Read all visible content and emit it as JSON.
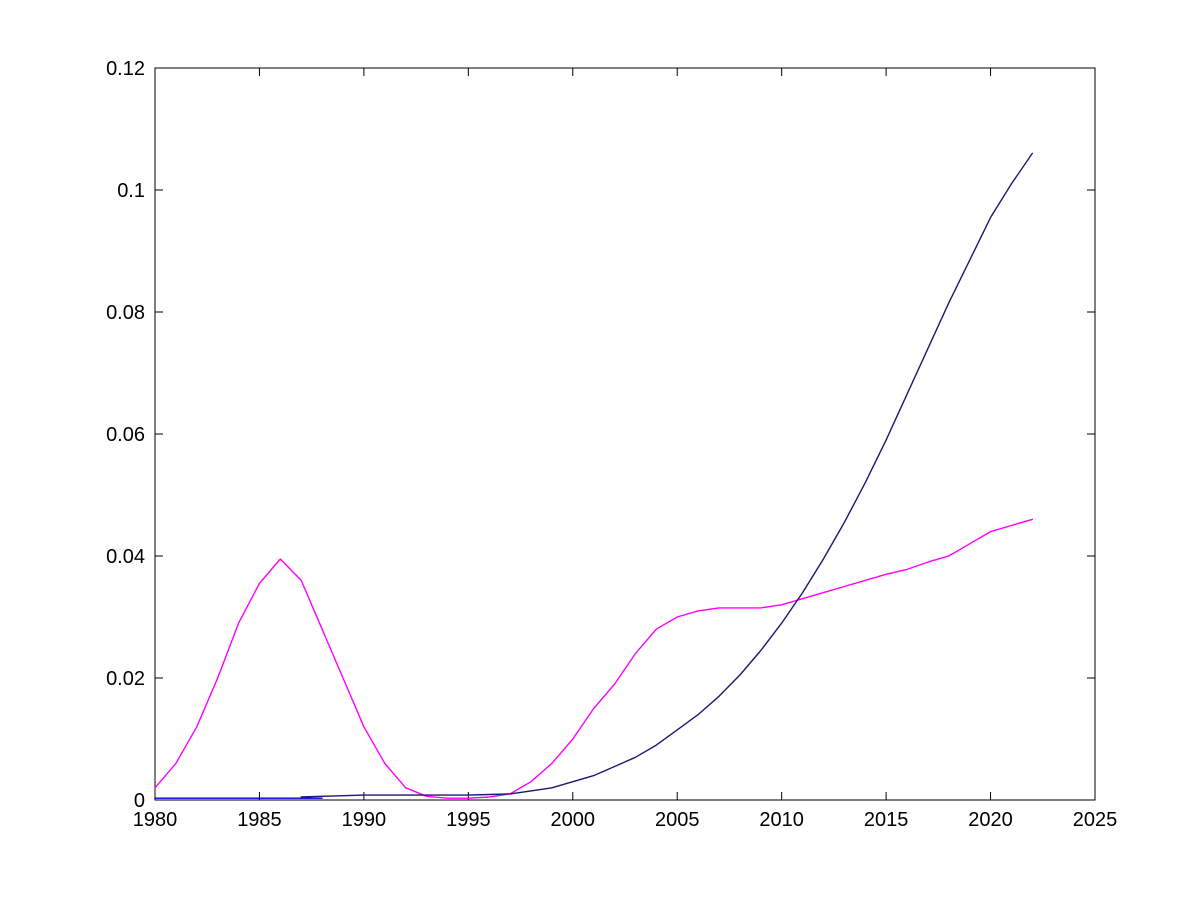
{
  "chart_data": {
    "type": "line",
    "title": "",
    "xlabel": "",
    "ylabel": "",
    "xlim": [
      1980,
      2025
    ],
    "ylim": [
      0,
      0.12
    ],
    "grid": false,
    "legend": "none",
    "xticks": [
      1980,
      1985,
      1990,
      1995,
      2000,
      2005,
      2010,
      2015,
      2020,
      2025
    ],
    "xtick_labels": [
      "1980",
      "1985",
      "1990",
      "1995",
      "2000",
      "2005",
      "2010",
      "2015",
      "2020",
      "2025"
    ],
    "yticks": [
      0,
      0.02,
      0.04,
      0.06,
      0.08,
      0.1,
      0.12
    ],
    "ytick_labels": [
      "0",
      "0.02",
      "0.04",
      "0.06",
      "0.08",
      "0.1",
      "0.12"
    ],
    "series": [
      {
        "name": "magenta-line",
        "color": "#FF00FF",
        "x": [
          1980,
          1981,
          1982,
          1983,
          1984,
          1985,
          1986,
          1987,
          1988,
          1989,
          1990,
          1991,
          1992,
          1993,
          1994,
          1995,
          1996,
          1997,
          1998,
          1999,
          2000,
          2001,
          2002,
          2003,
          2004,
          2005,
          2006,
          2007,
          2008,
          2009,
          2010,
          2011,
          2012,
          2013,
          2014,
          2015,
          2016,
          2017,
          2018,
          2019,
          2020,
          2021,
          2022
        ],
        "y": [
          0.002,
          0.006,
          0.012,
          0.02,
          0.029,
          0.0355,
          0.0395,
          0.036,
          0.028,
          0.02,
          0.012,
          0.006,
          0.002,
          0.0006,
          0.0003,
          0.0003,
          0.0005,
          0.001,
          0.003,
          0.006,
          0.01,
          0.015,
          0.019,
          0.024,
          0.028,
          0.03,
          0.031,
          0.0315,
          0.0315,
          0.0315,
          0.032,
          0.033,
          0.034,
          0.035,
          0.036,
          0.037,
          0.0378,
          0.039,
          0.04,
          0.042,
          0.044,
          0.045,
          0.046
        ]
      },
      {
        "name": "dark-rising-line",
        "color": "#191970",
        "x": [
          1987,
          1988,
          1989,
          1990,
          1991,
          1992,
          1993,
          1994,
          1995,
          1996,
          1997,
          1998,
          1999,
          2000,
          2001,
          2002,
          2003,
          2004,
          2005,
          2006,
          2007,
          2008,
          2009,
          2010,
          2011,
          2012,
          2013,
          2014,
          2015,
          2016,
          2017,
          2018,
          2019,
          2020,
          2021,
          2022
        ],
        "y": [
          0.0005,
          0.0006,
          0.0007,
          0.0008,
          0.0008,
          0.0008,
          0.0008,
          0.0008,
          0.0008,
          0.0009,
          0.001,
          0.0015,
          0.002,
          0.003,
          0.004,
          0.0055,
          0.007,
          0.009,
          0.0115,
          0.014,
          0.017,
          0.0205,
          0.0245,
          0.029,
          0.034,
          0.0395,
          0.0455,
          0.052,
          0.059,
          0.0665,
          0.074,
          0.0815,
          0.0885,
          0.0955,
          0.101,
          0.106
        ]
      },
      {
        "name": "blue-baseline",
        "color": "#0000CD",
        "x": [
          1980,
          1981,
          1982,
          1983,
          1984,
          1985,
          1986,
          1987,
          1988
        ],
        "y": [
          0.0003,
          0.0003,
          0.0003,
          0.0003,
          0.0003,
          0.0003,
          0.0003,
          0.0003,
          0.0003
        ]
      }
    ]
  }
}
